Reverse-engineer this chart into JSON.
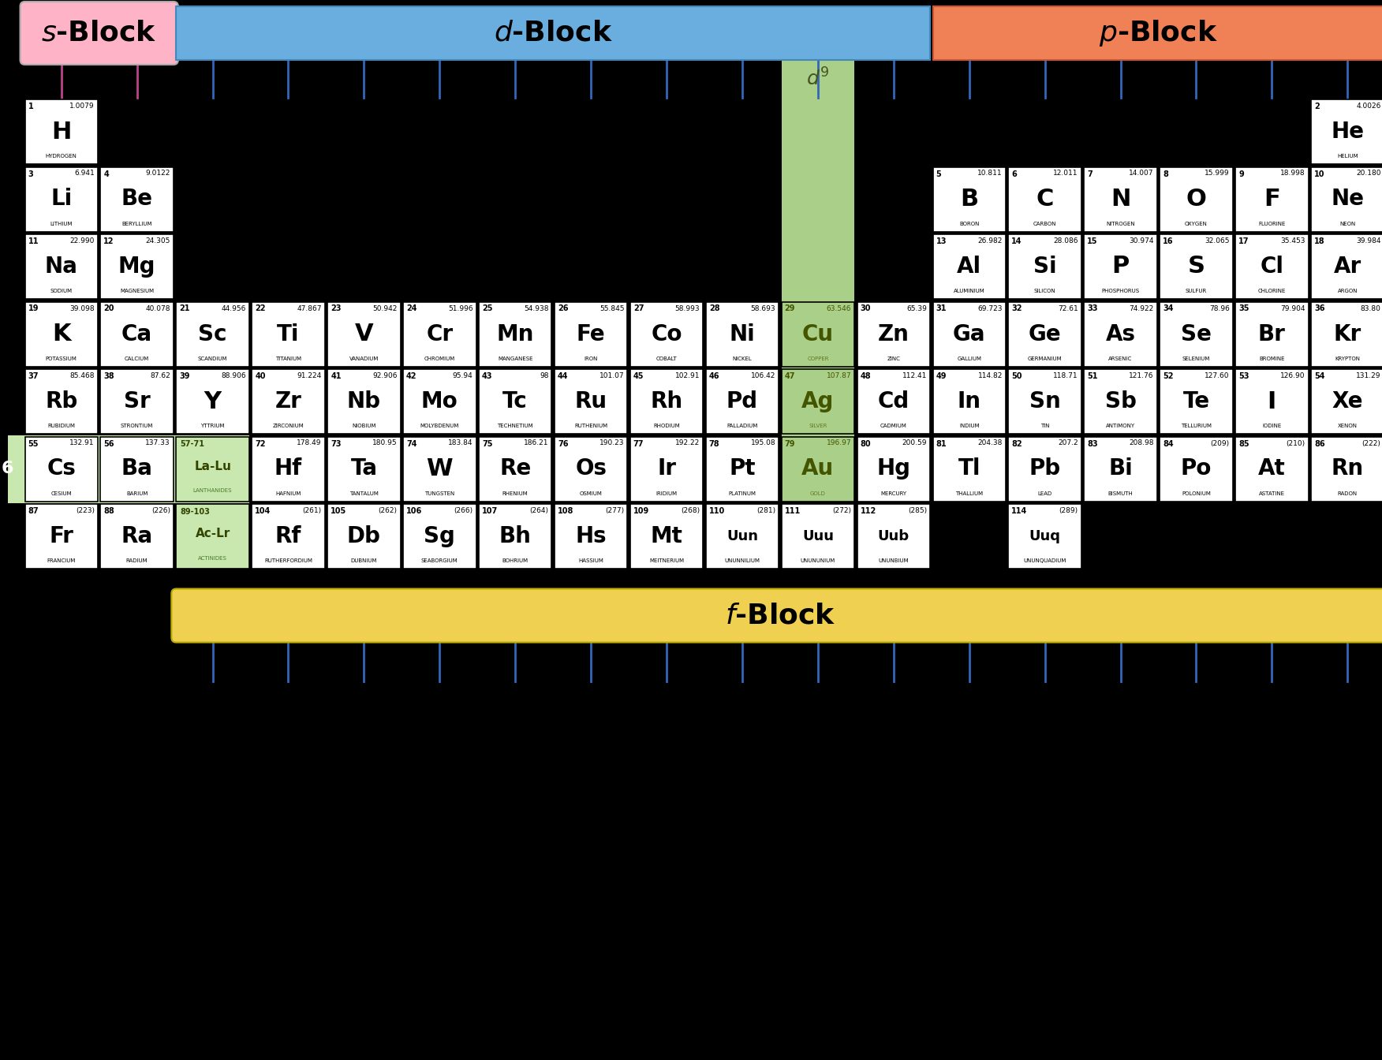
{
  "bg": "#000000",
  "cell_bg": "#FFFFFF",
  "s_color": "#FFB3C6",
  "d_color": "#6AAEE0",
  "p_color": "#F08055",
  "f_color": "#F0D050",
  "d9_color": "#AACF88",
  "la_ac_bg": "#C8E8B0",
  "la_ac_text": "#4A7A28",
  "tick_d_color": "#3366BB",
  "tick_s_color": "#BB4488",
  "elements": [
    {
      "symbol": "H",
      "name": "HYDROGEN",
      "num": "1",
      "mass": "1.0079",
      "col": 1,
      "row": 1
    },
    {
      "symbol": "He",
      "name": "HELIUM",
      "num": "2",
      "mass": "4.0026",
      "col": 18,
      "row": 1
    },
    {
      "symbol": "Li",
      "name": "LITHIUM",
      "num": "3",
      "mass": "6.941",
      "col": 1,
      "row": 2
    },
    {
      "symbol": "Be",
      "name": "BERYLLIUM",
      "num": "4",
      "mass": "9.0122",
      "col": 2,
      "row": 2
    },
    {
      "symbol": "B",
      "name": "BORON",
      "num": "5",
      "mass": "10.811",
      "col": 13,
      "row": 2
    },
    {
      "symbol": "C",
      "name": "CARBON",
      "num": "6",
      "mass": "12.011",
      "col": 14,
      "row": 2
    },
    {
      "symbol": "N",
      "name": "NITROGEN",
      "num": "7",
      "mass": "14.007",
      "col": 15,
      "row": 2
    },
    {
      "symbol": "O",
      "name": "OXYGEN",
      "num": "8",
      "mass": "15.999",
      "col": 16,
      "row": 2
    },
    {
      "symbol": "F",
      "name": "FLUORINE",
      "num": "9",
      "mass": "18.998",
      "col": 17,
      "row": 2
    },
    {
      "symbol": "Ne",
      "name": "NEON",
      "num": "10",
      "mass": "20.180",
      "col": 18,
      "row": 2
    },
    {
      "symbol": "Na",
      "name": "SODIUM",
      "num": "11",
      "mass": "22.990",
      "col": 1,
      "row": 3
    },
    {
      "symbol": "Mg",
      "name": "MAGNESIUM",
      "num": "12",
      "mass": "24.305",
      "col": 2,
      "row": 3
    },
    {
      "symbol": "Al",
      "name": "ALUMINIUM",
      "num": "13",
      "mass": "26.982",
      "col": 13,
      "row": 3
    },
    {
      "symbol": "Si",
      "name": "SILICON",
      "num": "14",
      "mass": "28.086",
      "col": 14,
      "row": 3
    },
    {
      "symbol": "P",
      "name": "PHOSPHORUS",
      "num": "15",
      "mass": "30.974",
      "col": 15,
      "row": 3
    },
    {
      "symbol": "S",
      "name": "SULFUR",
      "num": "16",
      "mass": "32.065",
      "col": 16,
      "row": 3
    },
    {
      "symbol": "Cl",
      "name": "CHLORINE",
      "num": "17",
      "mass": "35.453",
      "col": 17,
      "row": 3
    },
    {
      "symbol": "Ar",
      "name": "ARGON",
      "num": "18",
      "mass": "39.984",
      "col": 18,
      "row": 3
    },
    {
      "symbol": "K",
      "name": "POTASSIUM",
      "num": "19",
      "mass": "39.098",
      "col": 1,
      "row": 4
    },
    {
      "symbol": "Ca",
      "name": "CALCIUM",
      "num": "20",
      "mass": "40.078",
      "col": 2,
      "row": 4
    },
    {
      "symbol": "Sc",
      "name": "SCANDIUM",
      "num": "21",
      "mass": "44.956",
      "col": 3,
      "row": 4
    },
    {
      "symbol": "Ti",
      "name": "TITANIUM",
      "num": "22",
      "mass": "47.867",
      "col": 4,
      "row": 4
    },
    {
      "symbol": "V",
      "name": "VANADIUM",
      "num": "23",
      "mass": "50.942",
      "col": 5,
      "row": 4
    },
    {
      "symbol": "Cr",
      "name": "CHROMIUM",
      "num": "24",
      "mass": "51.996",
      "col": 6,
      "row": 4
    },
    {
      "symbol": "Mn",
      "name": "MANGANESE",
      "num": "25",
      "mass": "54.938",
      "col": 7,
      "row": 4
    },
    {
      "symbol": "Fe",
      "name": "IRON",
      "num": "26",
      "mass": "55.845",
      "col": 8,
      "row": 4
    },
    {
      "symbol": "Co",
      "name": "COBALT",
      "num": "27",
      "mass": "58.993",
      "col": 9,
      "row": 4
    },
    {
      "symbol": "Ni",
      "name": "NICKEL",
      "num": "28",
      "mass": "58.693",
      "col": 10,
      "row": 4
    },
    {
      "symbol": "Cu",
      "name": "COPPER",
      "num": "29",
      "mass": "63.546",
      "col": 11,
      "row": 4,
      "d9": true
    },
    {
      "symbol": "Zn",
      "name": "ZINC",
      "num": "30",
      "mass": "65.39",
      "col": 12,
      "row": 4
    },
    {
      "symbol": "Ga",
      "name": "GALLIUM",
      "num": "31",
      "mass": "69.723",
      "col": 13,
      "row": 4
    },
    {
      "symbol": "Ge",
      "name": "GERMANIUM",
      "num": "32",
      "mass": "72.61",
      "col": 14,
      "row": 4
    },
    {
      "symbol": "As",
      "name": "ARSENIC",
      "num": "33",
      "mass": "74.922",
      "col": 15,
      "row": 4
    },
    {
      "symbol": "Se",
      "name": "SELENIUM",
      "num": "34",
      "mass": "78.96",
      "col": 16,
      "row": 4
    },
    {
      "symbol": "Br",
      "name": "BROMINE",
      "num": "35",
      "mass": "79.904",
      "col": 17,
      "row": 4
    },
    {
      "symbol": "Kr",
      "name": "KRYPTON",
      "num": "36",
      "mass": "83.80",
      "col": 18,
      "row": 4
    },
    {
      "symbol": "Rb",
      "name": "RUBIDIUM",
      "num": "37",
      "mass": "85.468",
      "col": 1,
      "row": 5
    },
    {
      "symbol": "Sr",
      "name": "STRONTIUM",
      "num": "38",
      "mass": "87.62",
      "col": 2,
      "row": 5
    },
    {
      "symbol": "Y",
      "name": "YTTRIUM",
      "num": "39",
      "mass": "88.906",
      "col": 3,
      "row": 5
    },
    {
      "symbol": "Zr",
      "name": "ZIRCONIUM",
      "num": "40",
      "mass": "91.224",
      "col": 4,
      "row": 5
    },
    {
      "symbol": "Nb",
      "name": "NIOBIUM",
      "num": "41",
      "mass": "92.906",
      "col": 5,
      "row": 5
    },
    {
      "symbol": "Mo",
      "name": "MOLYBDENUM",
      "num": "42",
      "mass": "95.94",
      "col": 6,
      "row": 5
    },
    {
      "symbol": "Tc",
      "name": "TECHNETIUM",
      "num": "43",
      "mass": "98",
      "col": 7,
      "row": 5
    },
    {
      "symbol": "Ru",
      "name": "RUTHENIUM",
      "num": "44",
      "mass": "101.07",
      "col": 8,
      "row": 5
    },
    {
      "symbol": "Rh",
      "name": "RHODIUM",
      "num": "45",
      "mass": "102.91",
      "col": 9,
      "row": 5
    },
    {
      "symbol": "Pd",
      "name": "PALLADIUM",
      "num": "46",
      "mass": "106.42",
      "col": 10,
      "row": 5
    },
    {
      "symbol": "Ag",
      "name": "SILVER",
      "num": "47",
      "mass": "107.87",
      "col": 11,
      "row": 5,
      "d9": true
    },
    {
      "symbol": "Cd",
      "name": "CADMIUM",
      "num": "48",
      "mass": "112.41",
      "col": 12,
      "row": 5
    },
    {
      "symbol": "In",
      "name": "INDIUM",
      "num": "49",
      "mass": "114.82",
      "col": 13,
      "row": 5
    },
    {
      "symbol": "Sn",
      "name": "TIN",
      "num": "50",
      "mass": "118.71",
      "col": 14,
      "row": 5
    },
    {
      "symbol": "Sb",
      "name": "ANTIMONY",
      "num": "51",
      "mass": "121.76",
      "col": 15,
      "row": 5
    },
    {
      "symbol": "Te",
      "name": "TELLURIUM",
      "num": "52",
      "mass": "127.60",
      "col": 16,
      "row": 5
    },
    {
      "symbol": "I",
      "name": "IODINE",
      "num": "53",
      "mass": "126.90",
      "col": 17,
      "row": 5
    },
    {
      "symbol": "Xe",
      "name": "XENON",
      "num": "54",
      "mass": "131.29",
      "col": 18,
      "row": 5
    },
    {
      "symbol": "Cs",
      "name": "CESIUM",
      "num": "55",
      "mass": "132.91",
      "col": 1,
      "row": 6
    },
    {
      "symbol": "Ba",
      "name": "BARIUM",
      "num": "56",
      "mass": "137.33",
      "col": 2,
      "row": 6
    },
    {
      "symbol": "La-Lu",
      "name": "LANTHANIDES",
      "num_r": "57-71",
      "col": 3,
      "row": 6,
      "la_ac": true
    },
    {
      "symbol": "Hf",
      "name": "HAFNIUM",
      "num": "72",
      "mass": "178.49",
      "col": 4,
      "row": 6
    },
    {
      "symbol": "Ta",
      "name": "TANTALUM",
      "num": "73",
      "mass": "180.95",
      "col": 5,
      "row": 6
    },
    {
      "symbol": "W",
      "name": "TUNGSTEN",
      "num": "74",
      "mass": "183.84",
      "col": 6,
      "row": 6
    },
    {
      "symbol": "Re",
      "name": "RHENIUM",
      "num": "75",
      "mass": "186.21",
      "col": 7,
      "row": 6
    },
    {
      "symbol": "Os",
      "name": "OSMIUM",
      "num": "76",
      "mass": "190.23",
      "col": 8,
      "row": 6
    },
    {
      "symbol": "Ir",
      "name": "IRIDIUM",
      "num": "77",
      "mass": "192.22",
      "col": 9,
      "row": 6
    },
    {
      "symbol": "Pt",
      "name": "PLATINUM",
      "num": "78",
      "mass": "195.08",
      "col": 10,
      "row": 6
    },
    {
      "symbol": "Au",
      "name": "GOLD",
      "num": "79",
      "mass": "196.97",
      "col": 11,
      "row": 6,
      "d9": true
    },
    {
      "symbol": "Hg",
      "name": "MERCURY",
      "num": "80",
      "mass": "200.59",
      "col": 12,
      "row": 6
    },
    {
      "symbol": "Tl",
      "name": "THALLIUM",
      "num": "81",
      "mass": "204.38",
      "col": 13,
      "row": 6
    },
    {
      "symbol": "Pb",
      "name": "LEAD",
      "num": "82",
      "mass": "207.2",
      "col": 14,
      "row": 6
    },
    {
      "symbol": "Bi",
      "name": "BISMUTH",
      "num": "83",
      "mass": "208.98",
      "col": 15,
      "row": 6
    },
    {
      "symbol": "Po",
      "name": "POLONIUM",
      "num": "84",
      "mass": "(209)",
      "col": 16,
      "row": 6
    },
    {
      "symbol": "At",
      "name": "ASTATINE",
      "num": "85",
      "mass": "(210)",
      "col": 17,
      "row": 6
    },
    {
      "symbol": "Rn",
      "name": "RADON",
      "num": "86",
      "mass": "(222)",
      "col": 18,
      "row": 6
    },
    {
      "symbol": "Fr",
      "name": "FRANCIUM",
      "num": "87",
      "mass": "(223)",
      "col": 1,
      "row": 7
    },
    {
      "symbol": "Ra",
      "name": "RADIUM",
      "num": "88",
      "mass": "(226)",
      "col": 2,
      "row": 7
    },
    {
      "symbol": "Ac-Lr",
      "name": "ACTINIDES",
      "num_r": "89-103",
      "col": 3,
      "row": 7,
      "la_ac": true
    },
    {
      "symbol": "Rf",
      "name": "RUTHERFORDIUM",
      "num": "104",
      "mass": "(261)",
      "col": 4,
      "row": 7
    },
    {
      "symbol": "Db",
      "name": "DUBNIUM",
      "num": "105",
      "mass": "(262)",
      "col": 5,
      "row": 7
    },
    {
      "symbol": "Sg",
      "name": "SEABORGIUM",
      "num": "106",
      "mass": "(266)",
      "col": 6,
      "row": 7
    },
    {
      "symbol": "Bh",
      "name": "BOHRIUM",
      "num": "107",
      "mass": "(264)",
      "col": 7,
      "row": 7
    },
    {
      "symbol": "Hs",
      "name": "HASSIUM",
      "num": "108",
      "mass": "(277)",
      "col": 8,
      "row": 7
    },
    {
      "symbol": "Mt",
      "name": "MEITNERIUM",
      "num": "109",
      "mass": "(268)",
      "col": 9,
      "row": 7
    },
    {
      "symbol": "Uun",
      "name": "UNUNNILIUM",
      "num": "110",
      "mass": "(281)",
      "col": 10,
      "row": 7
    },
    {
      "symbol": "Uuu",
      "name": "UNUNUNIUM",
      "num": "111",
      "mass": "(272)",
      "col": 11,
      "row": 7
    },
    {
      "symbol": "Uub",
      "name": "UNUNBIUM",
      "num": "112",
      "mass": "(285)",
      "col": 12,
      "row": 7
    },
    {
      "symbol": "Uuq",
      "name": "UNUNQUADIUM",
      "num": "114",
      "mass": "(289)",
      "col": 14,
      "row": 7
    }
  ]
}
